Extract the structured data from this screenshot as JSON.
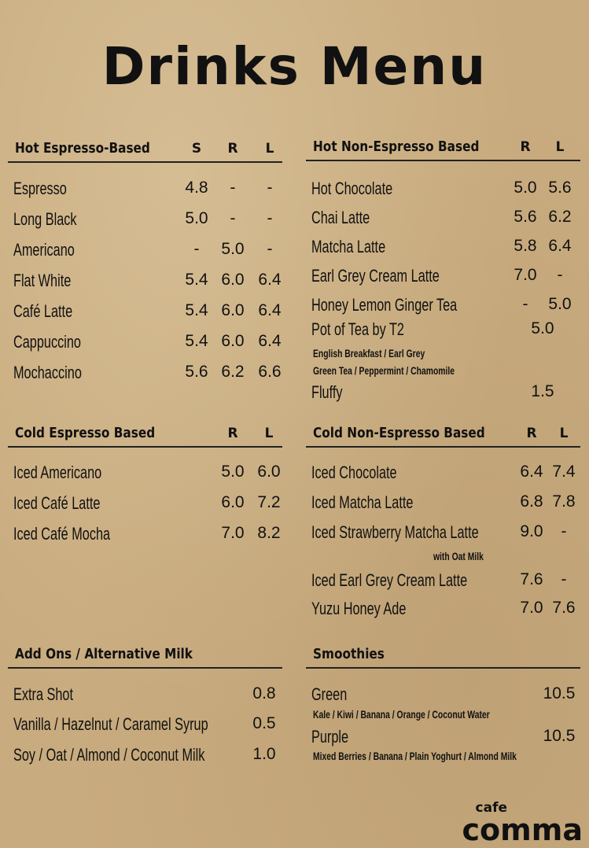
{
  "title": "Drinks Menu",
  "sections": [
    {
      "id": "hot-espresso",
      "title": "Hot Espresso-Based",
      "columns": [
        "S",
        "R",
        "L"
      ],
      "items": [
        {
          "name": "Espresso",
          "prices": [
            "4.8",
            "-",
            "-"
          ]
        },
        {
          "name": "Long Black",
          "prices": [
            "5.0",
            "-",
            "-"
          ]
        },
        {
          "name": "Americano",
          "prices": [
            "-",
            "5.0",
            "-"
          ]
        },
        {
          "name": "Flat White",
          "prices": [
            "5.4",
            "6.0",
            "6.4"
          ]
        },
        {
          "name": "Café Latte",
          "prices": [
            "5.4",
            "6.0",
            "6.4"
          ]
        },
        {
          "name": "Cappuccino",
          "prices": [
            "5.4",
            "6.0",
            "6.4"
          ]
        },
        {
          "name": "Mochaccino",
          "prices": [
            "5.6",
            "6.2",
            "6.6"
          ]
        }
      ]
    },
    {
      "id": "hot-non-espresso",
      "title": "Hot Non-Espresso Based",
      "columns": [
        "R",
        "L"
      ],
      "items": [
        {
          "name": "Hot Chocolate",
          "prices": [
            "5.0",
            "5.6"
          ]
        },
        {
          "name": "Chai Latte",
          "prices": [
            "5.6",
            "6.2"
          ]
        },
        {
          "name": "Matcha Latte",
          "prices": [
            "5.8",
            "6.4"
          ]
        },
        {
          "name": "Earl Grey Cream Latte",
          "prices": [
            "7.0",
            "-"
          ]
        },
        {
          "name": "Honey Lemon Ginger Tea",
          "prices": [
            "-",
            "5.0"
          ]
        },
        {
          "name": "Pot of Tea by T2",
          "prices": [
            "5.0"
          ],
          "sub": [
            "English Breakfast / Earl Grey",
            "Green Tea / Peppermint / Chamomile"
          ]
        },
        {
          "name": "Fluffy",
          "prices": [
            "1.5"
          ]
        }
      ]
    },
    {
      "id": "cold-espresso",
      "title": "Cold Espresso Based",
      "columns": [
        "R",
        "L"
      ],
      "items": [
        {
          "name": "Iced Americano",
          "prices": [
            "5.0",
            "6.0"
          ]
        },
        {
          "name": "Iced Café Latte",
          "prices": [
            "6.0",
            "7.2"
          ]
        },
        {
          "name": "Iced Café Mocha",
          "prices": [
            "7.0",
            "8.2"
          ]
        }
      ]
    },
    {
      "id": "cold-non-espresso",
      "title": "Cold Non-Espresso Based",
      "columns": [
        "R",
        "L"
      ],
      "items": [
        {
          "name": "Iced Chocolate",
          "prices": [
            "6.4",
            "7.4"
          ]
        },
        {
          "name": "Iced Matcha Latte",
          "prices": [
            "6.8",
            "7.8"
          ]
        },
        {
          "name": "Iced Strawberry Matcha Latte",
          "prices": [
            "9.0",
            "-"
          ],
          "sub": [
            "with Oat Milk"
          ]
        },
        {
          "name": "Iced Earl Grey Cream Latte",
          "prices": [
            "7.6",
            "-"
          ]
        },
        {
          "name": "Yuzu Honey Ade",
          "prices": [
            "7.0",
            "7.6"
          ]
        }
      ]
    },
    {
      "id": "add-ons",
      "title": "Add Ons / Alternative Milk",
      "columns": [],
      "items": [
        {
          "name": "Extra Shot",
          "prices": [
            "0.8"
          ]
        },
        {
          "name": "Vanilla / Hazelnut / Caramel Syrup",
          "prices": [
            "0.5"
          ]
        },
        {
          "name": "Soy / Oat / Almond / Coconut Milk",
          "prices": [
            "1.0"
          ]
        }
      ]
    },
    {
      "id": "smoothies",
      "title": "Smoothies",
      "columns": [],
      "items": [
        {
          "name": "Green",
          "prices": [
            "10.5"
          ],
          "sub": [
            "Kale / Kiwi / Banana / Orange / Coconut Water"
          ]
        },
        {
          "name": "Purple",
          "prices": [
            "10.5"
          ],
          "sub": [
            "Mixed Berries / Banana / Plain Yoghurt / Almond Milk"
          ]
        }
      ]
    }
  ],
  "logo": {
    "line1": "cafe",
    "line2": "comma"
  }
}
